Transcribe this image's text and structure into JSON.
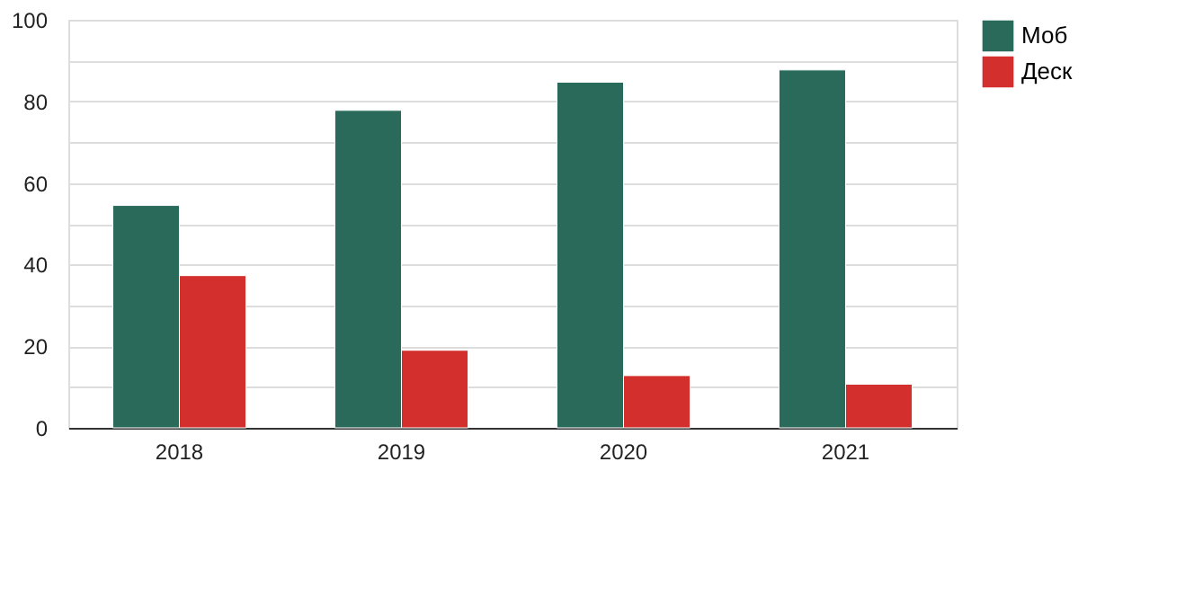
{
  "chart_data": {
    "type": "bar",
    "categories": [
      "2018",
      "2019",
      "2020",
      "2021"
    ],
    "series": [
      {
        "name": "Моб",
        "color": "#2a6a5a",
        "values": [
          54.5,
          77.8,
          84.7,
          87.7
        ]
      },
      {
        "name": "Деск",
        "color": "#d32f2c",
        "values": [
          37.3,
          19,
          12.8,
          10.7
        ]
      }
    ],
    "ylim": [
      0,
      100
    ],
    "yticks": [
      0,
      {
        "value": 10,
        "label": null
      },
      20,
      {
        "value": 30,
        "label": null
      },
      40,
      {
        "value": 50,
        "label": null
      },
      60,
      {
        "value": 70,
        "label": null
      },
      80,
      {
        "value": 90,
        "label": null
      },
      100
    ],
    "grid": "y",
    "legend": "top right"
  }
}
